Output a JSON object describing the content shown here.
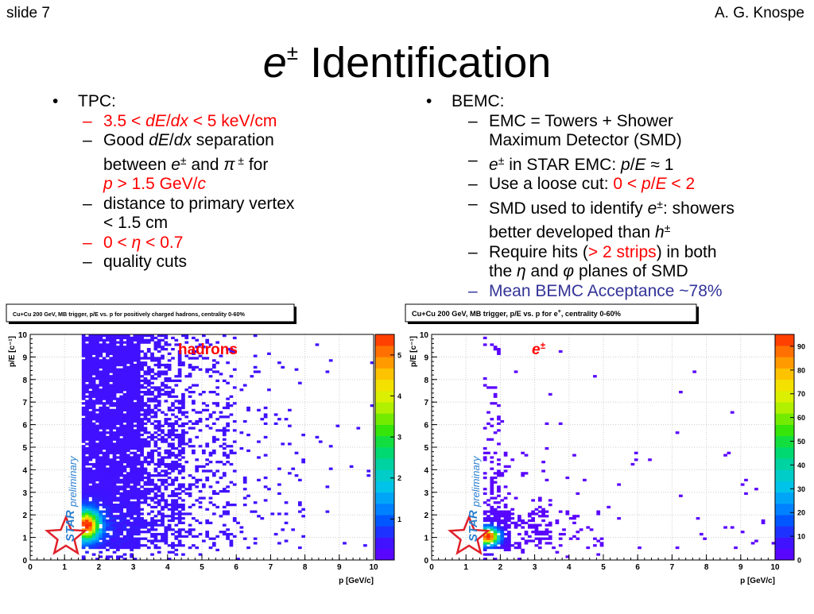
{
  "header": {
    "slide": "slide 7",
    "author": "A. G. Knospe"
  },
  "title": {
    "e": "e",
    "pm": "±",
    "rest": "Identification"
  },
  "tpc": {
    "heading": "TPC:",
    "cut1": {
      "a": "3.5 < ",
      "b": "dE",
      "c": "/",
      "d": "dx",
      "e": " < 5 keV/cm"
    },
    "cut2": {
      "a": "Good ",
      "b": "dE",
      "c": "/",
      "d": "dx",
      "e": " separation",
      "f": "between ",
      "g": "e",
      "h": "±",
      "i": " and ",
      "j": "π",
      "k": " ±",
      "l": " for",
      "m": "p",
      "n": " > 1.5 GeV/",
      "o": "c"
    },
    "cut3": {
      "a": "distance to primary vertex",
      "b": "< 1.5 cm"
    },
    "cut4": {
      "a": "0 < ",
      "b": "η",
      "c": " < 0.7"
    },
    "cut5": "quality cuts"
  },
  "bemc": {
    "heading": "BEMC:",
    "item1": {
      "a": "EMC = Towers + Shower",
      "b": "Maximum Detector (SMD)"
    },
    "item2": {
      "a": "e",
      "b": "±",
      "c": " in STAR EMC: ",
      "d": "p",
      "e": "/",
      "f": "E",
      "g": " ≈ 1"
    },
    "item3": {
      "a": "Use a loose cut: ",
      "b": "0 < ",
      "c": "p",
      "d": "/",
      "e": "E",
      "f": " < 2"
    },
    "item4": {
      "a": "SMD used to identify ",
      "b": "e",
      "c": "±",
      "d": ": showers",
      "e": "better developed than ",
      "f": "h",
      "g": "±"
    },
    "item5": {
      "a": "Require hits (",
      "b": "> 2 strips",
      "c": ") in both",
      "d": "the ",
      "e": "η",
      "f": " and ",
      "g": "φ",
      "h": " planes of SMD"
    },
    "item6": "Mean BEMC Acceptance ~78%"
  },
  "colors": {
    "red": "#ff0000",
    "blue": "#333399",
    "star_red": "#e0202a",
    "star_blue": "#2a7fd0"
  },
  "chart_data": [
    {
      "type": "heatmap",
      "title": "Cu+Cu 200 GeV, MB trigger, p/E vs. p for positively charged hadrons, centrality  0-60%",
      "xlabel": "p [GeV/c]",
      "ylabel": "p/E [c⁻¹]",
      "xlim": [
        0,
        10
      ],
      "ylim": [
        0,
        10
      ],
      "xticks": [
        "0",
        "1",
        "2",
        "3",
        "4",
        "5",
        "6",
        "7",
        "8",
        "9",
        "10"
      ],
      "yticks": [
        "0",
        "1",
        "2",
        "3",
        "4",
        "5",
        "6",
        "7",
        "8",
        "9",
        "10"
      ],
      "zticks": [
        "1",
        "2",
        "3",
        "4",
        "5"
      ],
      "zmax": 5.5,
      "annotation": "hadrons",
      "watermark": {
        "star": "STAR",
        "prelim": "preliminary"
      },
      "x_start": 1.5,
      "peak": {
        "x": 1.6,
        "y": 1.5
      },
      "grid": true
    },
    {
      "type": "heatmap",
      "title": "Cu+Cu 200 GeV, MB trigger, p/E vs. p for e",
      "title_sup": "+",
      "title_tail": ", centrality  0-60%",
      "xlabel": "p [GeV/c]",
      "ylabel": "p/E [c⁻¹]",
      "xlim": [
        0,
        10
      ],
      "ylim": [
        0,
        10
      ],
      "xticks": [
        "0",
        "1",
        "2",
        "3",
        "4",
        "5",
        "6",
        "7",
        "8",
        "9",
        "10"
      ],
      "yticks": [
        "0",
        "1",
        "2",
        "3",
        "4",
        "5",
        "6",
        "7",
        "8",
        "9",
        "10"
      ],
      "zticks": [
        "0",
        "10",
        "20",
        "30",
        "40",
        "50",
        "60",
        "70",
        "80",
        "90"
      ],
      "zmax": 95,
      "annotation": {
        "e": "e",
        "pm": "±"
      },
      "watermark": {
        "star": "STAR",
        "prelim": "preliminary"
      },
      "x_start": 1.5,
      "peak": {
        "x": 1.6,
        "y": 1.0
      },
      "grid": true
    }
  ]
}
